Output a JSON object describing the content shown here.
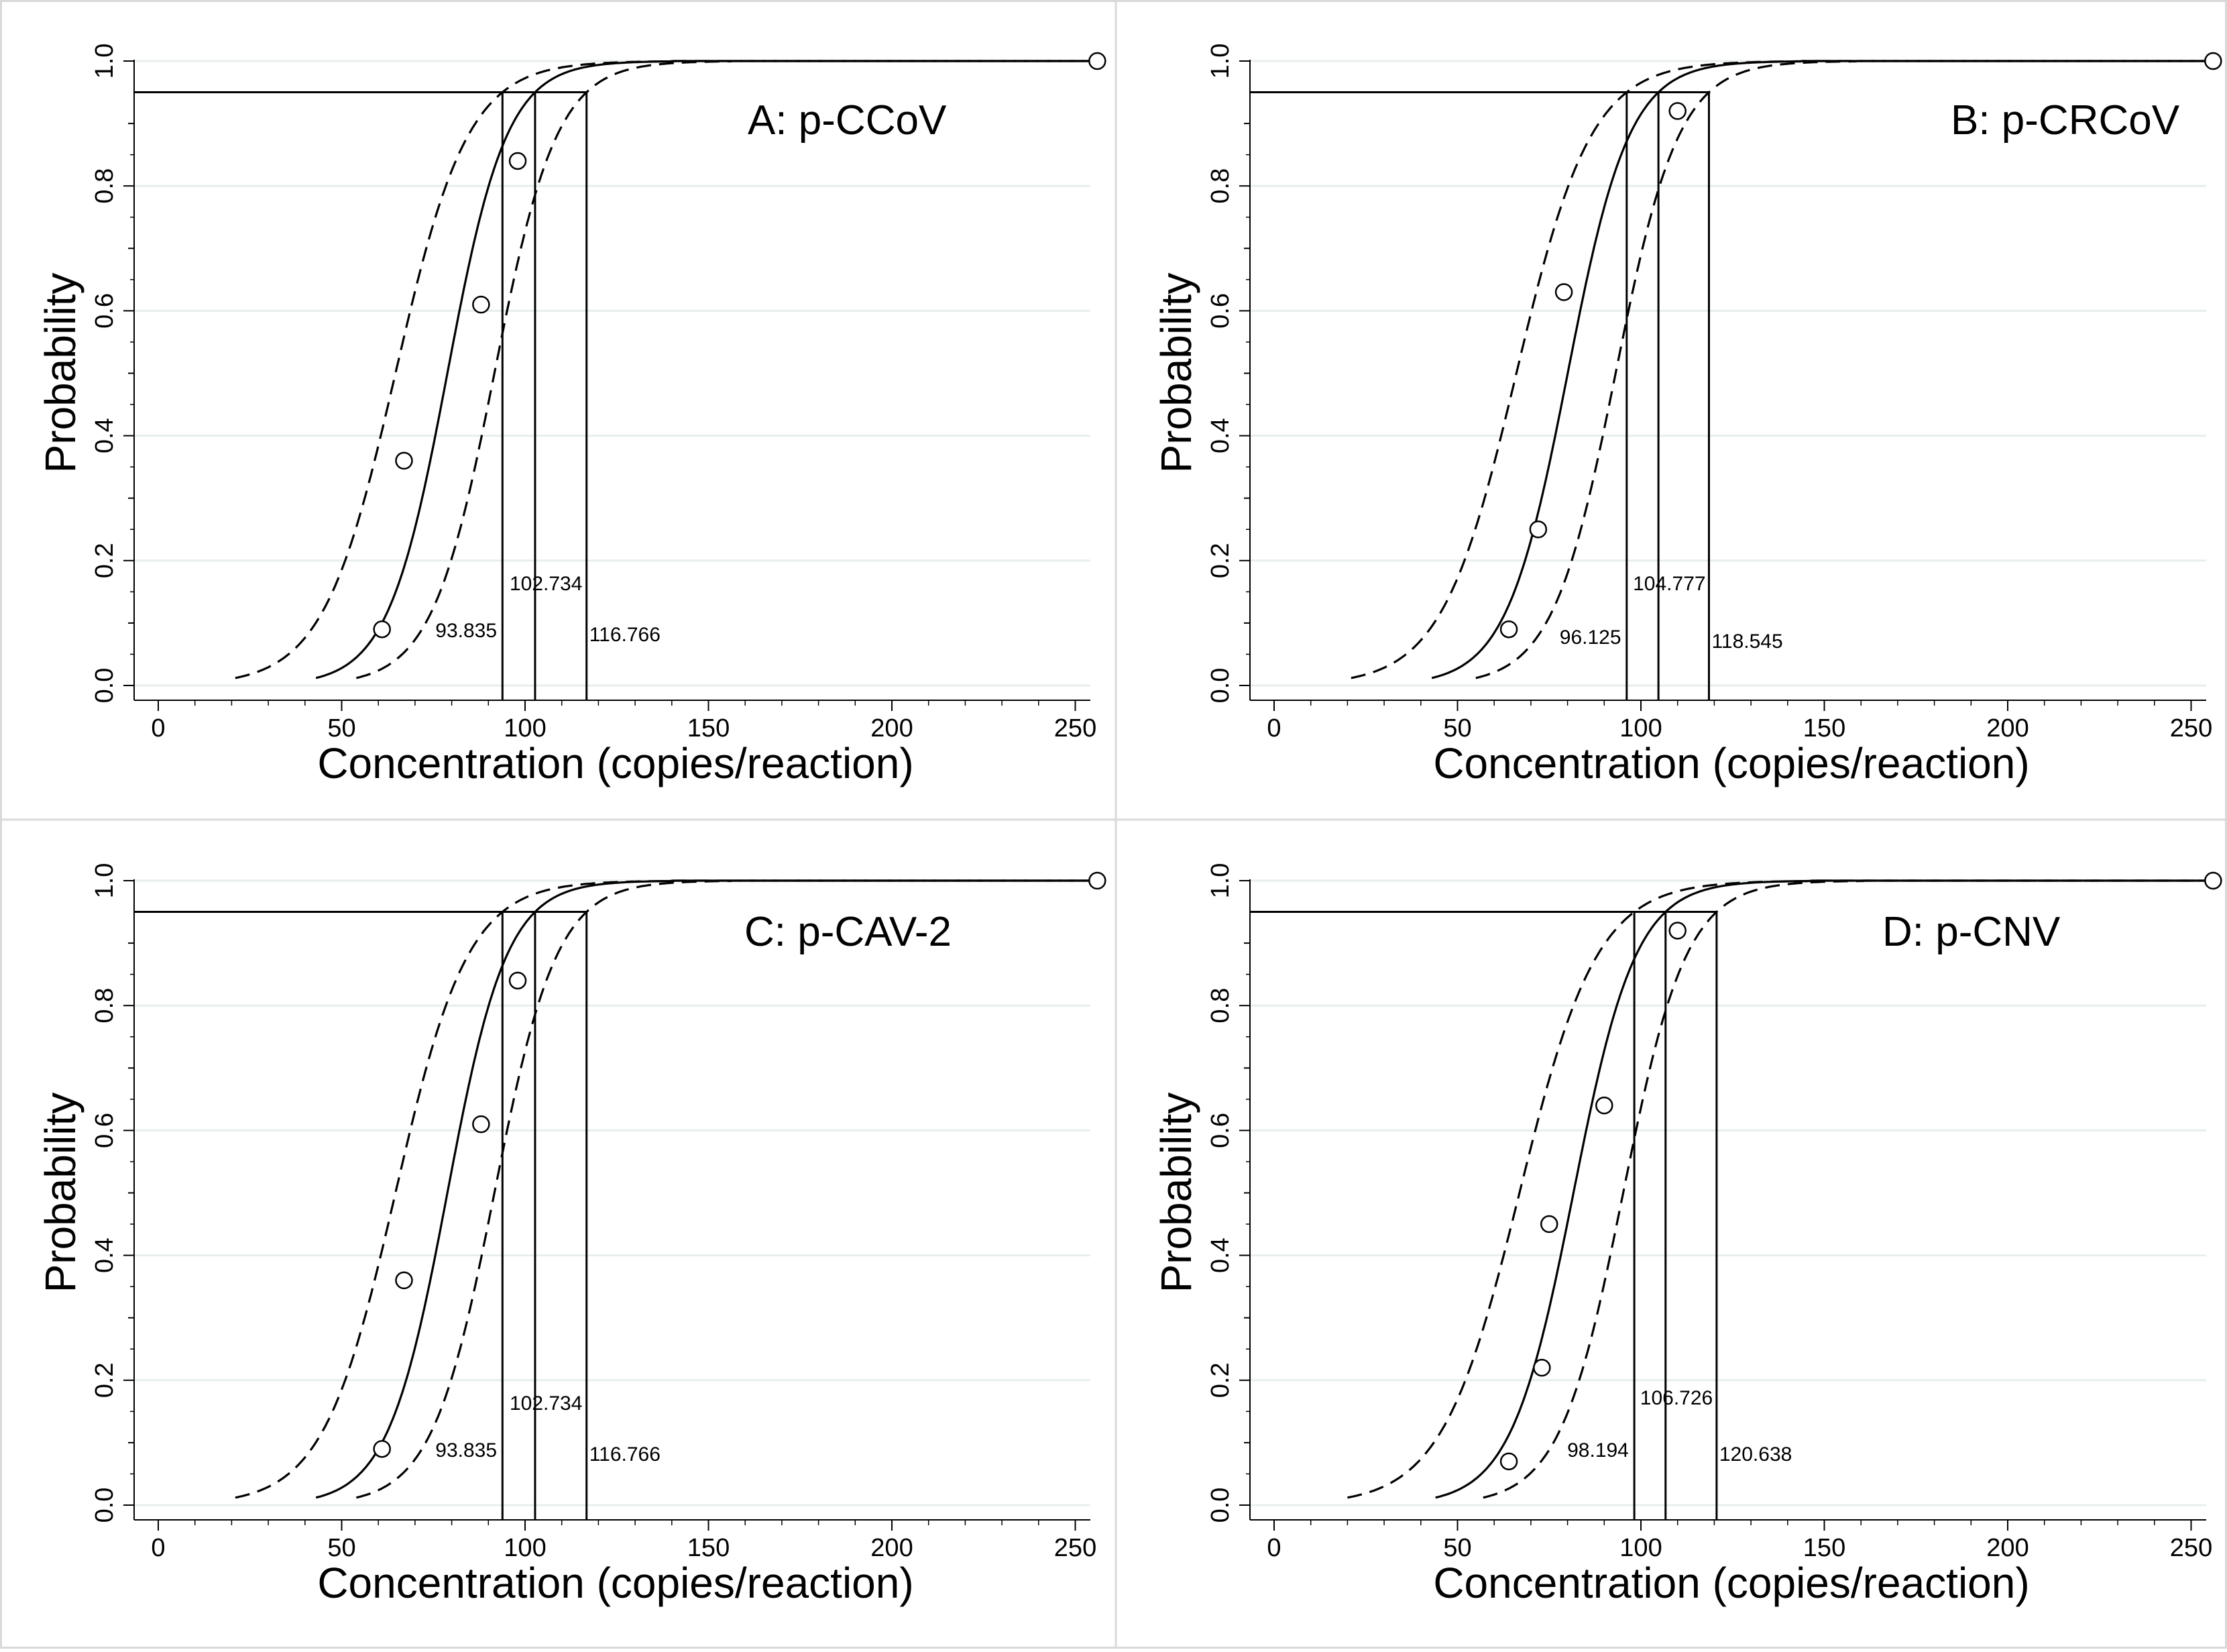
{
  "figure": {
    "description_free": true
  },
  "chart_data": [
    {
      "type": "line",
      "title": "A: p-CCoV",
      "xlabel": "Concentration (copies/reaction)",
      "ylabel": "Probability",
      "xlim": [
        0,
        255
      ],
      "ylim": [
        0,
        1
      ],
      "xticks": [
        0,
        50,
        100,
        150,
        200,
        250
      ],
      "yticks": [
        0.0,
        0.2,
        0.4,
        0.6,
        0.8,
        1.0
      ],
      "xtick_labels": [
        "0",
        "50",
        "100",
        "150",
        "200",
        "250"
      ],
      "ytick_labels": [
        "0.0",
        "0.2",
        "0.4",
        "0.6",
        "0.8",
        "1.0"
      ],
      "target_probability": 0.95,
      "lod": 102.734,
      "lod_lower": 93.835,
      "lod_upper": 116.766,
      "lod_labels": [
        "102.734",
        "93.835",
        "116.766"
      ],
      "observed_points": [
        {
          "x": 61,
          "y": 0.09
        },
        {
          "x": 67,
          "y": 0.36
        },
        {
          "x": 88,
          "y": 0.61
        },
        {
          "x": 98,
          "y": 0.84
        },
        {
          "x": 256,
          "y": 1.0
        }
      ],
      "series": [
        {
          "name": "fit",
          "style": "solid",
          "x_start": 43
        },
        {
          "name": "lower-bound",
          "style": "dashed",
          "x_start": 21
        },
        {
          "name": "upper-bound",
          "style": "dashed",
          "x_start": 54
        }
      ]
    },
    {
      "type": "line",
      "title": "B: p-CRCoV",
      "xlabel": "Concentration (copies/reaction)",
      "ylabel": "Probability",
      "xlim": [
        0,
        255
      ],
      "ylim": [
        0,
        1
      ],
      "xticks": [
        0,
        50,
        100,
        150,
        200,
        250
      ],
      "yticks": [
        0.0,
        0.2,
        0.4,
        0.6,
        0.8,
        1.0
      ],
      "xtick_labels": [
        "0",
        "50",
        "100",
        "150",
        "200",
        "250"
      ],
      "ytick_labels": [
        "0.0",
        "0.2",
        "0.4",
        "0.6",
        "0.8",
        "1.0"
      ],
      "target_probability": 0.95,
      "lod": 104.777,
      "lod_lower": 96.125,
      "lod_upper": 118.545,
      "lod_labels": [
        "104.777",
        "96.125",
        "118.545"
      ],
      "observed_points": [
        {
          "x": 64,
          "y": 0.09
        },
        {
          "x": 72,
          "y": 0.25
        },
        {
          "x": 79,
          "y": 0.63
        },
        {
          "x": 110,
          "y": 0.92
        },
        {
          "x": 256,
          "y": 1.0
        }
      ],
      "series": [
        {
          "name": "fit",
          "style": "solid",
          "x_start": 43
        },
        {
          "name": "lower-bound",
          "style": "dashed",
          "x_start": 21
        },
        {
          "name": "upper-bound",
          "style": "dashed",
          "x_start": 55
        }
      ]
    },
    {
      "type": "line",
      "title": "C: p-CAV-2",
      "xlabel": "Concentration (copies/reaction)",
      "ylabel": "Probability",
      "xlim": [
        0,
        255
      ],
      "ylim": [
        0,
        1
      ],
      "xticks": [
        0,
        50,
        100,
        150,
        200,
        250
      ],
      "yticks": [
        0.0,
        0.2,
        0.4,
        0.6,
        0.8,
        1.0
      ],
      "xtick_labels": [
        "0",
        "50",
        "100",
        "150",
        "200",
        "250"
      ],
      "ytick_labels": [
        "0.0",
        "0.2",
        "0.4",
        "0.6",
        "0.8",
        "1.0"
      ],
      "target_probability": 0.95,
      "lod": 102.734,
      "lod_lower": 93.835,
      "lod_upper": 116.766,
      "lod_labels": [
        "102.734",
        "93.835",
        "116.766"
      ],
      "observed_points": [
        {
          "x": 61,
          "y": 0.09
        },
        {
          "x": 67,
          "y": 0.36
        },
        {
          "x": 88,
          "y": 0.61
        },
        {
          "x": 98,
          "y": 0.84
        },
        {
          "x": 256,
          "y": 1.0
        }
      ],
      "series": [
        {
          "name": "fit",
          "style": "solid",
          "x_start": 43
        },
        {
          "name": "lower-bound",
          "style": "dashed",
          "x_start": 21
        },
        {
          "name": "upper-bound",
          "style": "dashed",
          "x_start": 54
        }
      ]
    },
    {
      "type": "line",
      "title": "D: p-CNV",
      "xlabel": "Concentration (copies/reaction)",
      "ylabel": "Probability",
      "xlim": [
        0,
        255
      ],
      "ylim": [
        0,
        1
      ],
      "xticks": [
        0,
        50,
        100,
        150,
        200,
        250
      ],
      "yticks": [
        0.0,
        0.2,
        0.4,
        0.6,
        0.8,
        1.0
      ],
      "xtick_labels": [
        "0",
        "50",
        "100",
        "150",
        "200",
        "250"
      ],
      "ytick_labels": [
        "0.0",
        "0.2",
        "0.4",
        "0.6",
        "0.8",
        "1.0"
      ],
      "target_probability": 0.95,
      "lod": 106.726,
      "lod_lower": 98.194,
      "lod_upper": 120.638,
      "lod_labels": [
        "106.726",
        "98.194",
        "120.638"
      ],
      "observed_points": [
        {
          "x": 64,
          "y": 0.07
        },
        {
          "x": 73,
          "y": 0.22
        },
        {
          "x": 75,
          "y": 0.45
        },
        {
          "x": 90,
          "y": 0.64
        },
        {
          "x": 110,
          "y": 0.92
        },
        {
          "x": 256,
          "y": 1.0
        }
      ],
      "series": [
        {
          "name": "fit",
          "style": "solid",
          "x_start": 44
        },
        {
          "name": "lower-bound",
          "style": "dashed",
          "x_start": 20
        },
        {
          "name": "upper-bound",
          "style": "dashed",
          "x_start": 57
        }
      ]
    }
  ]
}
